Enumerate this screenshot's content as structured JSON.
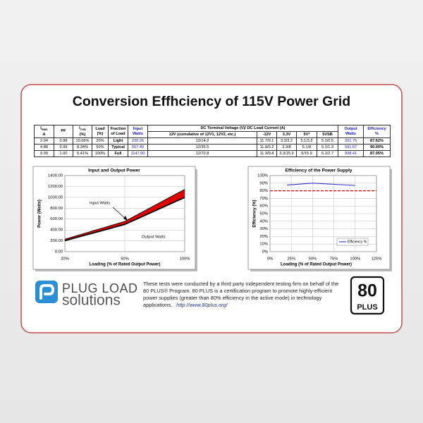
{
  "title": "Conversion Effhciency of 115V Power Grid",
  "table": {
    "group_header": "DC Terminal Voltage (V)/ DC Load Current (A)",
    "columns": [
      {
        "label": "I",
        "sub": "RMS",
        "unit": "A"
      },
      {
        "label": "PF"
      },
      {
        "label": "I",
        "sub": "THD",
        "unit": "(%)"
      },
      {
        "label": "Load",
        "unit": "(%)"
      },
      {
        "label": "Fraction",
        "unit": "of Load"
      },
      {
        "label": "Input",
        "unit": "Watts"
      },
      {
        "label": "12V (cumulative of 12V1, 12V2, etc.)"
      },
      {
        "label": "-12V"
      },
      {
        "label": "3.3V"
      },
      {
        "label": "5V*"
      },
      {
        "label": "5VSB"
      },
      {
        "label": "Output",
        "unit": "Watts"
      },
      {
        "label": "Efficiency",
        "unit": "%"
      }
    ],
    "rows": [
      [
        "2.04",
        "0.98",
        "10.06%",
        "20%",
        "Light",
        "230.26",
        "12/14.2",
        "11.7/0.1",
        "3.3/3.2",
        "5.1/3.2",
        "5.1/0.5",
        "201.75",
        "87.62%"
      ],
      [
        "4.88",
        "0.99",
        "8.34%",
        "50%",
        "Typical",
        "557.40",
        "12/35.5",
        "11.8/0.2",
        "3.3/8",
        "5.1/8",
        "5.1/1.3",
        "501.67",
        "90.00%"
      ],
      [
        "9.99",
        "1.00",
        "5.41%",
        "100%",
        "Full",
        "1147.00",
        "12/70.8",
        "11.9/0.4",
        "3.3/15.9",
        "5/15.9",
        "5.1/2.7",
        "998.41",
        "87.05%"
      ]
    ]
  },
  "chart_data": [
    {
      "type": "area",
      "title": "Input and Output Power",
      "x_label": "Loading (% of Rated Output Power)",
      "y_label": "Power (Watts)",
      "categories": [
        "20%",
        "50%",
        "100%"
      ],
      "series": [
        {
          "name": "Input Watts",
          "color": "#000000",
          "values": [
            230.26,
            557.4,
            1147.0
          ]
        },
        {
          "name": "Output Watts",
          "color": "#000000",
          "values": [
            201.75,
            501.67,
            998.41
          ]
        }
      ],
      "band_color": "#e00000",
      "ylim": [
        0,
        1400
      ],
      "yticks": [
        {
          "value": 0,
          "label": "0.00"
        },
        {
          "value": 200,
          "label": "200.00"
        },
        {
          "value": 400,
          "label": "400.00"
        },
        {
          "value": 600,
          "label": "600.00"
        },
        {
          "value": 800,
          "label": "800.00"
        },
        {
          "value": 1000,
          "label": "1000.00"
        },
        {
          "value": 1200,
          "label": "1200.00"
        },
        {
          "value": 1400,
          "label": "1400.00"
        }
      ],
      "grid": true
    },
    {
      "type": "line",
      "title": "Efficiency of the Power Supply",
      "x_label": "Loading (% of Rated Output Power)",
      "y_label": "Efficiency (%)",
      "x": [
        20,
        50,
        100
      ],
      "series": [
        {
          "name": "Efficiency %",
          "color": "#3030c8",
          "values": [
            87.62,
            90.0,
            87.05
          ]
        }
      ],
      "threshold": 80,
      "threshold_color": "#e00000",
      "xlim": [
        0,
        125
      ],
      "xticks": [
        {
          "value": 0,
          "label": "0%"
        },
        {
          "value": 25,
          "label": "25%"
        },
        {
          "value": 50,
          "label": "50%"
        },
        {
          "value": 75,
          "label": "75%"
        },
        {
          "value": 100,
          "label": "100%"
        },
        {
          "value": 125,
          "label": "125%"
        }
      ],
      "ylim": [
        0,
        100
      ],
      "yticks": [
        {
          "value": 0,
          "label": "0%"
        },
        {
          "value": 10,
          "label": "10%"
        },
        {
          "value": 20,
          "label": "20%"
        },
        {
          "value": 30,
          "label": "30%"
        },
        {
          "value": 40,
          "label": "40%"
        },
        {
          "value": 50,
          "label": "50%"
        },
        {
          "value": 60,
          "label": "60%"
        },
        {
          "value": 70,
          "label": "70%"
        },
        {
          "value": 80,
          "label": "80%"
        },
        {
          "value": 90,
          "label": "90%"
        },
        {
          "value": 100,
          "label": "100%"
        }
      ],
      "grid": true,
      "legend": "lower right"
    }
  ],
  "footer": {
    "logo_top": "PLUG LOAD",
    "logo_bottom": "solutions",
    "text": "These tests were conducted by a third party independent testing firm on behalf of the 80 PLUS® Program. 80 PLUS is a certification program to promote highly-efficient power supplies (greater than 80% efficiency in the active mode) in technology applications.",
    "link": "http://www.80plus.org/",
    "badge_number": "80",
    "badge_text": "PLUS"
  }
}
